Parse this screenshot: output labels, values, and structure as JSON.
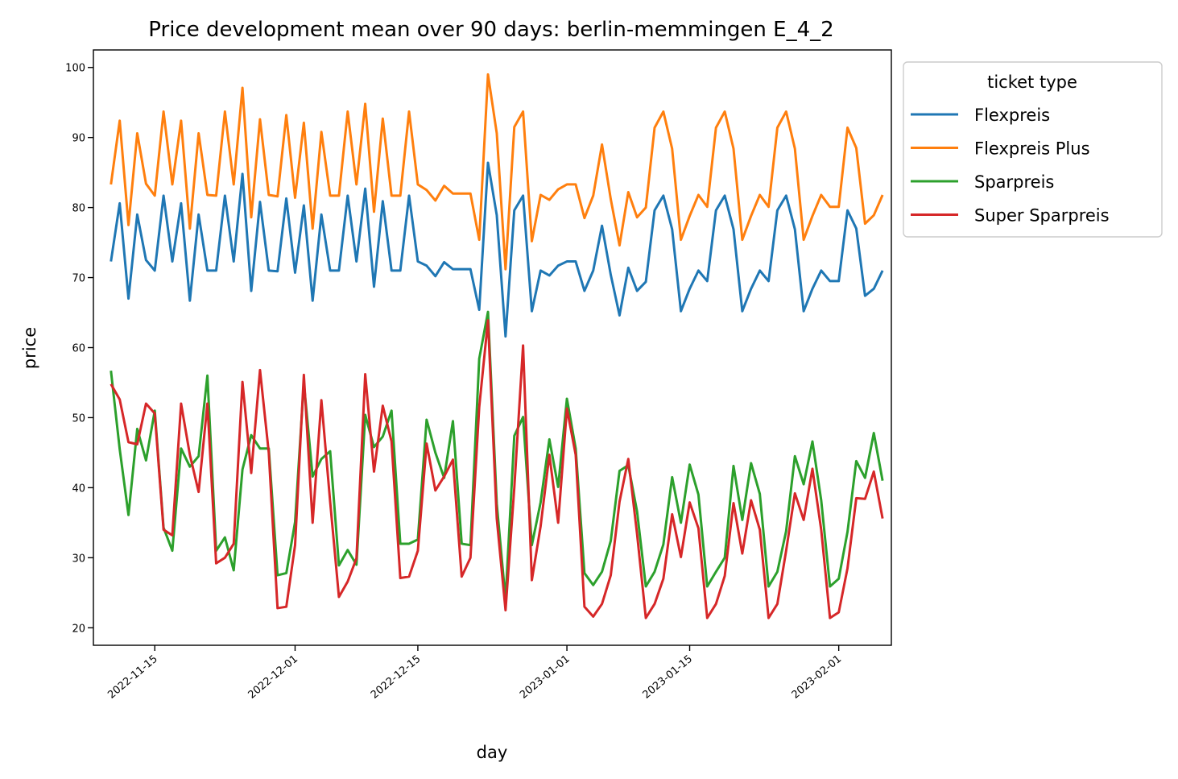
{
  "chart_data": {
    "type": "line",
    "title": "Price development mean over 90 days: berlin-memmingen E_4_2",
    "xlabel": "day",
    "ylabel": "price",
    "x_start": "2022-11-10",
    "x_range": [
      "2022-11-08",
      "2023-02-07"
    ],
    "ylim": [
      17.5,
      102.5
    ],
    "y_ticks": [
      20,
      30,
      40,
      50,
      60,
      70,
      80,
      90,
      100
    ],
    "x_ticks": [
      "2022-11-15",
      "2022-12-01",
      "2022-12-15",
      "2023-01-01",
      "2023-01-15",
      "2023-02-01"
    ],
    "grid": false,
    "legend": {
      "title": "ticket type",
      "placement": "outside-right-top"
    },
    "series": [
      {
        "name": "Flexpreis",
        "color": "#1f77b4",
        "values": [
          72.3,
          80.6,
          67.0,
          79.0,
          72.5,
          71.0,
          81.7,
          72.3,
          80.6,
          66.7,
          79.0,
          71.0,
          71.0,
          81.7,
          72.3,
          84.8,
          68.1,
          80.8,
          71.0,
          70.9,
          81.3,
          70.7,
          80.3,
          66.7,
          79.0,
          71.0,
          71.0,
          81.7,
          72.3,
          82.7,
          68.7,
          80.9,
          71.0,
          71.0,
          81.7,
          72.3,
          71.7,
          70.2,
          72.2,
          71.2,
          71.2,
          71.2,
          65.4,
          86.4,
          78.9,
          61.6,
          79.6,
          81.7,
          65.2,
          71.0,
          70.3,
          71.7,
          72.3,
          72.3,
          68.1,
          71.0,
          77.4,
          70.4,
          64.6,
          71.4,
          68.1,
          69.4,
          79.6,
          81.7,
          76.9,
          65.2,
          68.4,
          71.0,
          69.5,
          79.6,
          81.7,
          76.9,
          65.2,
          68.4,
          71.0,
          69.5,
          79.6,
          81.7,
          76.9,
          65.2,
          68.4,
          71.0,
          69.5,
          69.5,
          79.6,
          77.0,
          67.4,
          68.4,
          71.0
        ]
      },
      {
        "name": "Flexpreis Plus",
        "color": "#ff7f0e",
        "values": [
          83.3,
          92.4,
          77.5,
          90.6,
          83.4,
          81.7,
          93.7,
          83.3,
          92.4,
          77.0,
          90.6,
          81.8,
          81.7,
          93.7,
          83.3,
          97.1,
          78.6,
          92.6,
          81.8,
          81.6,
          93.2,
          81.4,
          92.1,
          77.0,
          90.8,
          81.7,
          81.7,
          93.7,
          83.3,
          94.8,
          79.4,
          92.7,
          81.7,
          81.7,
          93.7,
          83.3,
          82.5,
          81.0,
          83.1,
          82.0,
          82.0,
          82.0,
          75.4,
          99.0,
          90.6,
          71.2,
          91.5,
          93.7,
          75.2,
          81.8,
          81.1,
          82.6,
          83.3,
          83.3,
          78.5,
          81.7,
          89.0,
          81.2,
          74.6,
          82.2,
          78.6,
          80.0,
          91.4,
          93.7,
          88.4,
          75.4,
          78.8,
          81.8,
          80.1,
          91.4,
          93.7,
          88.4,
          75.4,
          78.8,
          81.8,
          80.1,
          91.4,
          93.7,
          88.4,
          75.4,
          78.8,
          81.8,
          80.1,
          80.1,
          91.4,
          88.5,
          77.7,
          78.9,
          81.8
        ]
      },
      {
        "name": "Sparpreis",
        "color": "#2ca02c",
        "values": [
          56.7,
          45.5,
          36.1,
          48.4,
          43.9,
          51.0,
          34.3,
          31.0,
          45.6,
          43.0,
          44.5,
          56.0,
          31.0,
          32.9,
          28.2,
          42.6,
          47.5,
          45.6,
          45.6,
          27.5,
          27.8,
          35.1,
          55.0,
          41.6,
          44.1,
          45.2,
          28.9,
          31.1,
          29.0,
          50.4,
          45.8,
          47.3,
          51.0,
          32.0,
          32.0,
          32.6,
          49.7,
          45.0,
          41.4,
          49.5,
          32.0,
          31.8,
          58.4,
          65.1,
          37.7,
          24.0,
          47.4,
          50.1,
          31.8,
          37.9,
          46.9,
          40.1,
          52.7,
          45.6,
          27.8,
          26.1,
          28.0,
          32.4,
          42.4,
          43.2,
          36.6,
          25.9,
          28.0,
          31.9,
          41.5,
          35.0,
          43.3,
          39.0,
          25.9,
          28.0,
          30.0,
          43.1,
          35.4,
          43.5,
          39.1,
          25.9,
          28.0,
          33.8,
          44.5,
          40.5,
          46.6,
          38.2,
          25.9,
          27.0,
          33.7,
          43.8,
          41.4,
          47.8,
          41.0
        ]
      },
      {
        "name": "Super Sparpreis",
        "color": "#d62728",
        "values": [
          54.8,
          52.6,
          46.5,
          46.2,
          52.0,
          50.6,
          34.0,
          33.2,
          52.0,
          44.7,
          39.4,
          52.0,
          29.2,
          30.0,
          32.0,
          55.1,
          42.1,
          56.8,
          45.0,
          22.8,
          23.0,
          31.8,
          56.1,
          35.0,
          52.5,
          38.0,
          24.4,
          26.6,
          29.9,
          56.2,
          42.3,
          51.7,
          46.6,
          27.1,
          27.3,
          31.0,
          46.3,
          39.6,
          41.6,
          44.0,
          27.3,
          30.0,
          51.5,
          63.9,
          35.6,
          22.5,
          40.0,
          60.3,
          26.8,
          34.5,
          44.7,
          35.0,
          51.3,
          44.7,
          23.0,
          21.6,
          23.4,
          27.5,
          38.0,
          44.1,
          33.4,
          21.4,
          23.4,
          27.0,
          36.2,
          30.1,
          37.9,
          34.2,
          21.4,
          23.4,
          27.4,
          37.8,
          30.6,
          38.2,
          34.0,
          21.4,
          23.4,
          31.0,
          39.2,
          35.4,
          42.7,
          34.0,
          21.4,
          22.2,
          28.5,
          38.5,
          38.4,
          42.3,
          35.6
        ]
      }
    ]
  }
}
